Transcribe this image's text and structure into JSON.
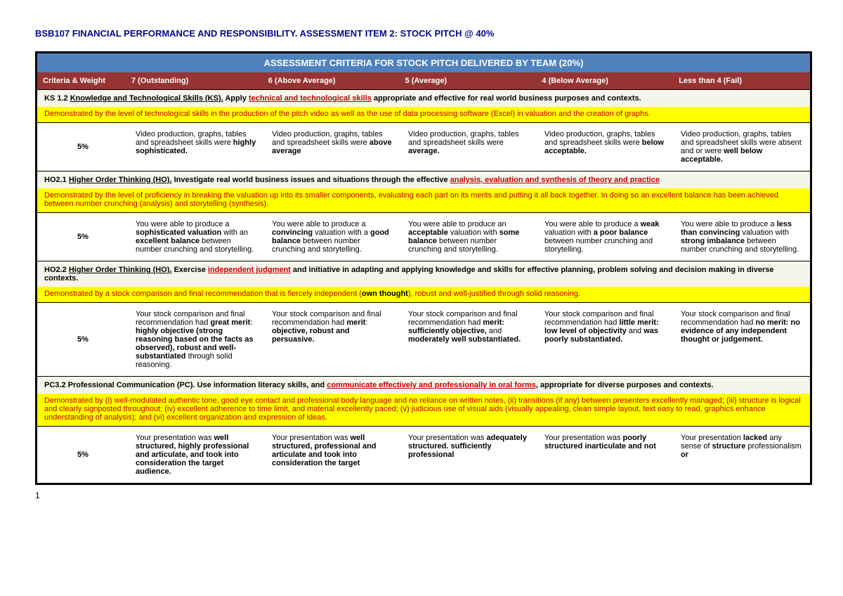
{
  "doc": {
    "title": "BSB107 FINANCIAL PERFORMANCE AND RESPONSIBILITY. ASSESSMENT ITEM 2: STOCK PITCH  @ 40%",
    "page_num": "1",
    "banner": "ASSESSMENT CRITERIA FOR STOCK PITCH DELIVERED BY TEAM (20%)"
  },
  "headers": {
    "weight": "Criteria & Weight",
    "c7": "7 (Outstanding)",
    "c6": "6 (Above Average)",
    "c5": "5 (Average)",
    "c4": "4 (Below Average)",
    "cfail": "Less than 4 (Fail)"
  },
  "ks12": {
    "weight": "5%",
    "title_pre": "KS 1.2 ",
    "title_uline": "Knowledge and Technological Skills (KS).",
    "title_mid": " Apply ",
    "title_red": "technical and technological skills",
    "title_post": " appropriate and effective for real world business purposes and contexts.",
    "desc": "Demonstrated by the level of technological skills in the production of the pitch video as well as the use of data processing software (Excel) in valuation and the creation of graphs.",
    "l7a": "Video production, graphs, tables and spreadsheet skills were ",
    "l7b": "highly sophisticated.",
    "l6a": "Video production, graphs, tables and spreadsheet skills were ",
    "l6b": "above average",
    "l5a": "Video production, graphs, tables and spreadsheet skills were ",
    "l5b": "average.",
    "l4a": "Video production, graphs, tables and spreadsheet skills were ",
    "l4b": "below acceptable.",
    "lfa": "Video production, graphs, tables and spreadsheet skills were absent and or were ",
    "lfb": "well below acceptable."
  },
  "ho21": {
    "weight": "5%",
    "title_pre": "HO2.1 ",
    "title_uline": "Higher Order Thinking (HO).",
    "title_mid": " Investigate real world business issues and situations through the effective ",
    "title_red": "analysis, evaluation and synthesis of theory and practice",
    "desc": "Demonstrated by the level of proficiency in breaking the valuation up into its smaller components, evaluating each part on its merits and putting it all back together. In doing so an excellent balance has been achieved between number crunching (analysis) and storytelling (synthesis).",
    "l7a": "You were able to produce a ",
    "l7b": "sophisticated valuation",
    "l7c": " with an ",
    "l7d": "excellent balance",
    "l7e": " between number crunching and storytelling.",
    "l6a": "You were able to produce a ",
    "l6b": "convincing",
    "l6c": " valuation with a ",
    "l6d": "good balance",
    "l6e": " between number crunching and storytelling.",
    "l5a": "You were able to produce an ",
    "l5b": "acceptable",
    "l5c": " valuation with ",
    "l5d": "some balance",
    "l5e": " between number crunching and storytelling.",
    "l4a": "You were able to produce a ",
    "l4b": "weak",
    "l4c": " valuation with ",
    "l4d": "a poor balance",
    "l4e": " between number crunching and storytelling.",
    "lfa": "You were able to produce a ",
    "lfb": "less than convincing",
    "lfc": " valuation with ",
    "lfd": "strong imbalance",
    "lfe": " between number crunching and storytelling."
  },
  "ho22": {
    "weight": "5%",
    "title_pre": "HO2.2 ",
    "title_uline": "Higher Order Thinking (HO).",
    "title_mid": " Exercise ",
    "title_red": "independent judgment",
    "title_post": " and initiative in adapting and applying knowledge and skills for effective planning, problem solving and decision making in diverse contexts.",
    "desc_a": "Demonstrated by a stock comparison and final recommendation that is fiercely independent (",
    "desc_b": "own thought",
    "desc_c": "), robust and well-justified through solid reasoning.",
    "l7a": "Your stock comparison and final recommendation had ",
    "l7b": "great merit",
    "l7c": ": ",
    "l7d": "highly objective (strong reasoning based on the facts as observed), robust and well-substantiated",
    "l7e": " through solid reasoning.",
    "l6a": "Your stock comparison and final recommendation had ",
    "l6b": "merit",
    "l6c": ": ",
    "l6d": "objective, robust and persuasive.",
    "l5a": "Your stock comparison and final recommendation had ",
    "l5b": "merit: sufficiently objective,",
    "l5c": " and ",
    "l5d": "moderately well substantiated.",
    "l4a": "Your stock comparison and final recommendation had ",
    "l4b": "little merit: low level of objectivity",
    "l4c": " and ",
    "l4d": "was poorly substantiated.",
    "lfa": "Your stock comparison and final recommendation had ",
    "lfb": "no merit: no evidence of any independent thought or judgement."
  },
  "pc32": {
    "weight": "5%",
    "title_pre": "PC3.2 Professional Communication (PC). Use information literacy skills, and ",
    "title_red": "communicate effectively and professionally in oral forms",
    "title_post": ", appropriate for diverse purposes and contexts.",
    "desc": "Demonstrated by (i) well-modulated authentic tone, good eye contact and professional body language and no reliance on written notes, (ii) transitions (if any) between presenters excellently managed; (iii) structure is logical and clearly signposted throughout; (iv) excellent adherence to time limit, and material excellently paced; (v) judicious use of visual aids (visually appealing, clean simple layout, text easy to read, graphics enhance understanding of analysis); and (vi) excellent organization and expression of ideas.",
    "l7a": "Your presentation was ",
    "l7b": "well structured, highly professional and articulate, and took into consideration the target audience.",
    "l6a": "Your presentation was ",
    "l6b": "well structured, professional and articulate and took into consideration the target",
    "l5a": "Your presentation was ",
    "l5b": "adequately structured. sufficiently professional",
    "l4a": "Your presentation was ",
    "l4b": "poorly structured inarticulate and not",
    "lfa": "Your presentation ",
    "lfb": "lacked",
    "lfc": " any sense of ",
    "lfd": "structure",
    "lfe": " professionalism ",
    "lff": "or"
  }
}
